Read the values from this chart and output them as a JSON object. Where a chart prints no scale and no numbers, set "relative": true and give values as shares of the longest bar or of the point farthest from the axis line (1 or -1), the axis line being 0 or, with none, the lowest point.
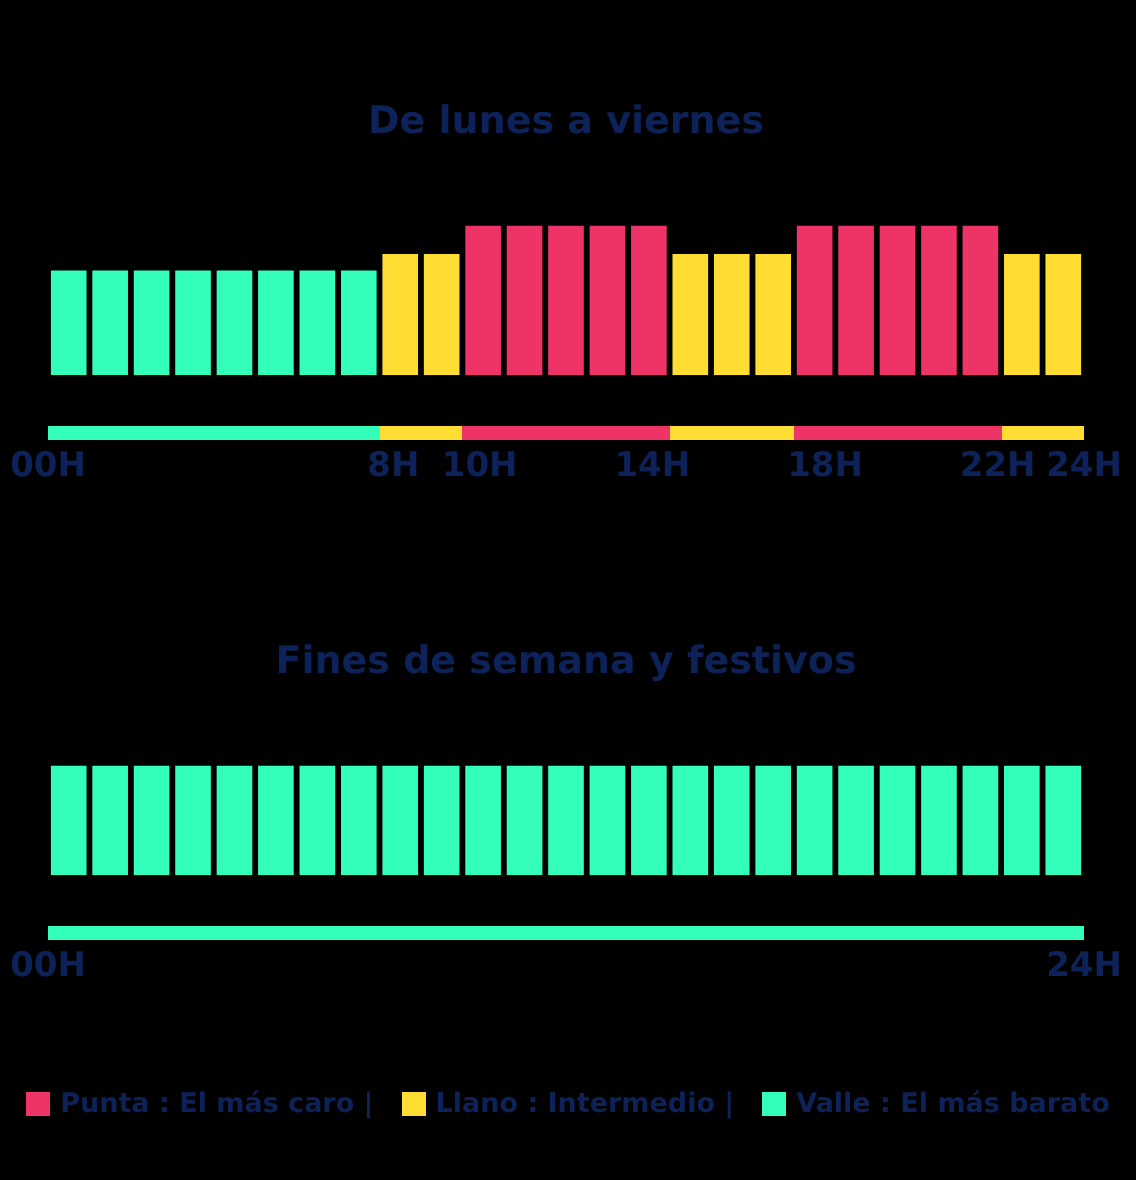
{
  "chart_data": [
    {
      "type": "bar",
      "title": "De lunes a viernes",
      "relative": true,
      "x": [
        0.48,
        1.44,
        2.4,
        3.36,
        4.32,
        5.28,
        6.24,
        7.2,
        8.16,
        9.12,
        10.08,
        11.04,
        12,
        12.96,
        13.92,
        14.88,
        15.84,
        16.8,
        17.76,
        18.72,
        19.68,
        20.64,
        21.6,
        22.56,
        23.52
      ],
      "xlim": [
        0,
        24
      ],
      "xticks": [
        {
          "value": 0,
          "label": "00H"
        },
        {
          "value": 8,
          "label": "8H"
        },
        {
          "value": 10,
          "label": "10H"
        },
        {
          "value": 14,
          "label": "14H"
        },
        {
          "value": 18,
          "label": "18H"
        },
        {
          "value": 22,
          "label": "22H"
        },
        {
          "value": 24,
          "label": "24H"
        }
      ],
      "legend": "bottom",
      "series": [
        {
          "name": "Punta : El más caro |",
          "color": "#ee3366",
          "values": [
            null,
            null,
            null,
            null,
            null,
            null,
            null,
            null,
            null,
            null,
            1,
            1,
            1,
            1,
            1,
            null,
            null,
            null,
            1,
            1,
            1,
            1,
            1,
            null,
            null
          ]
        },
        {
          "name": "Llano : Intermedio |",
          "color": "#ffdd33",
          "values": [
            null,
            null,
            null,
            null,
            null,
            null,
            null,
            null,
            0.81,
            0.81,
            null,
            null,
            null,
            null,
            null,
            0.81,
            0.81,
            0.81,
            null,
            null,
            null,
            null,
            null,
            0.81,
            0.81
          ]
        },
        {
          "name": "Valle : El más barato",
          "color": "#33ffbb",
          "values": [
            0.7,
            0.7,
            0.7,
            0.7,
            0.7,
            0.7,
            0.7,
            0.7,
            null,
            null,
            null,
            null,
            null,
            null,
            null,
            null,
            null,
            null,
            null,
            null,
            null,
            null,
            null,
            null,
            null
          ]
        }
      ]
    },
    {
      "type": "bar",
      "title": "Fines de semana y festivos",
      "relative": true,
      "x": [
        0.48,
        1.44,
        2.4,
        3.36,
        4.32,
        5.28,
        6.24,
        7.2,
        8.16,
        9.12,
        10.08,
        11.04,
        12,
        12.96,
        13.92,
        14.88,
        15.84,
        16.8,
        17.76,
        18.72,
        19.68,
        20.64,
        21.6,
        22.56,
        23.52
      ],
      "xlim": [
        0,
        24
      ],
      "xticks": [
        {
          "value": 0,
          "label": "00H"
        },
        {
          "value": 24,
          "label": "24H"
        }
      ],
      "series": [
        {
          "color": "#33ffbb",
          "values": [
            1,
            1,
            1,
            1,
            1,
            1,
            1,
            1,
            1,
            1,
            1,
            1,
            1,
            1,
            1,
            1,
            1,
            1,
            1,
            1,
            1,
            1,
            1,
            1,
            1
          ]
        }
      ]
    }
  ]
}
